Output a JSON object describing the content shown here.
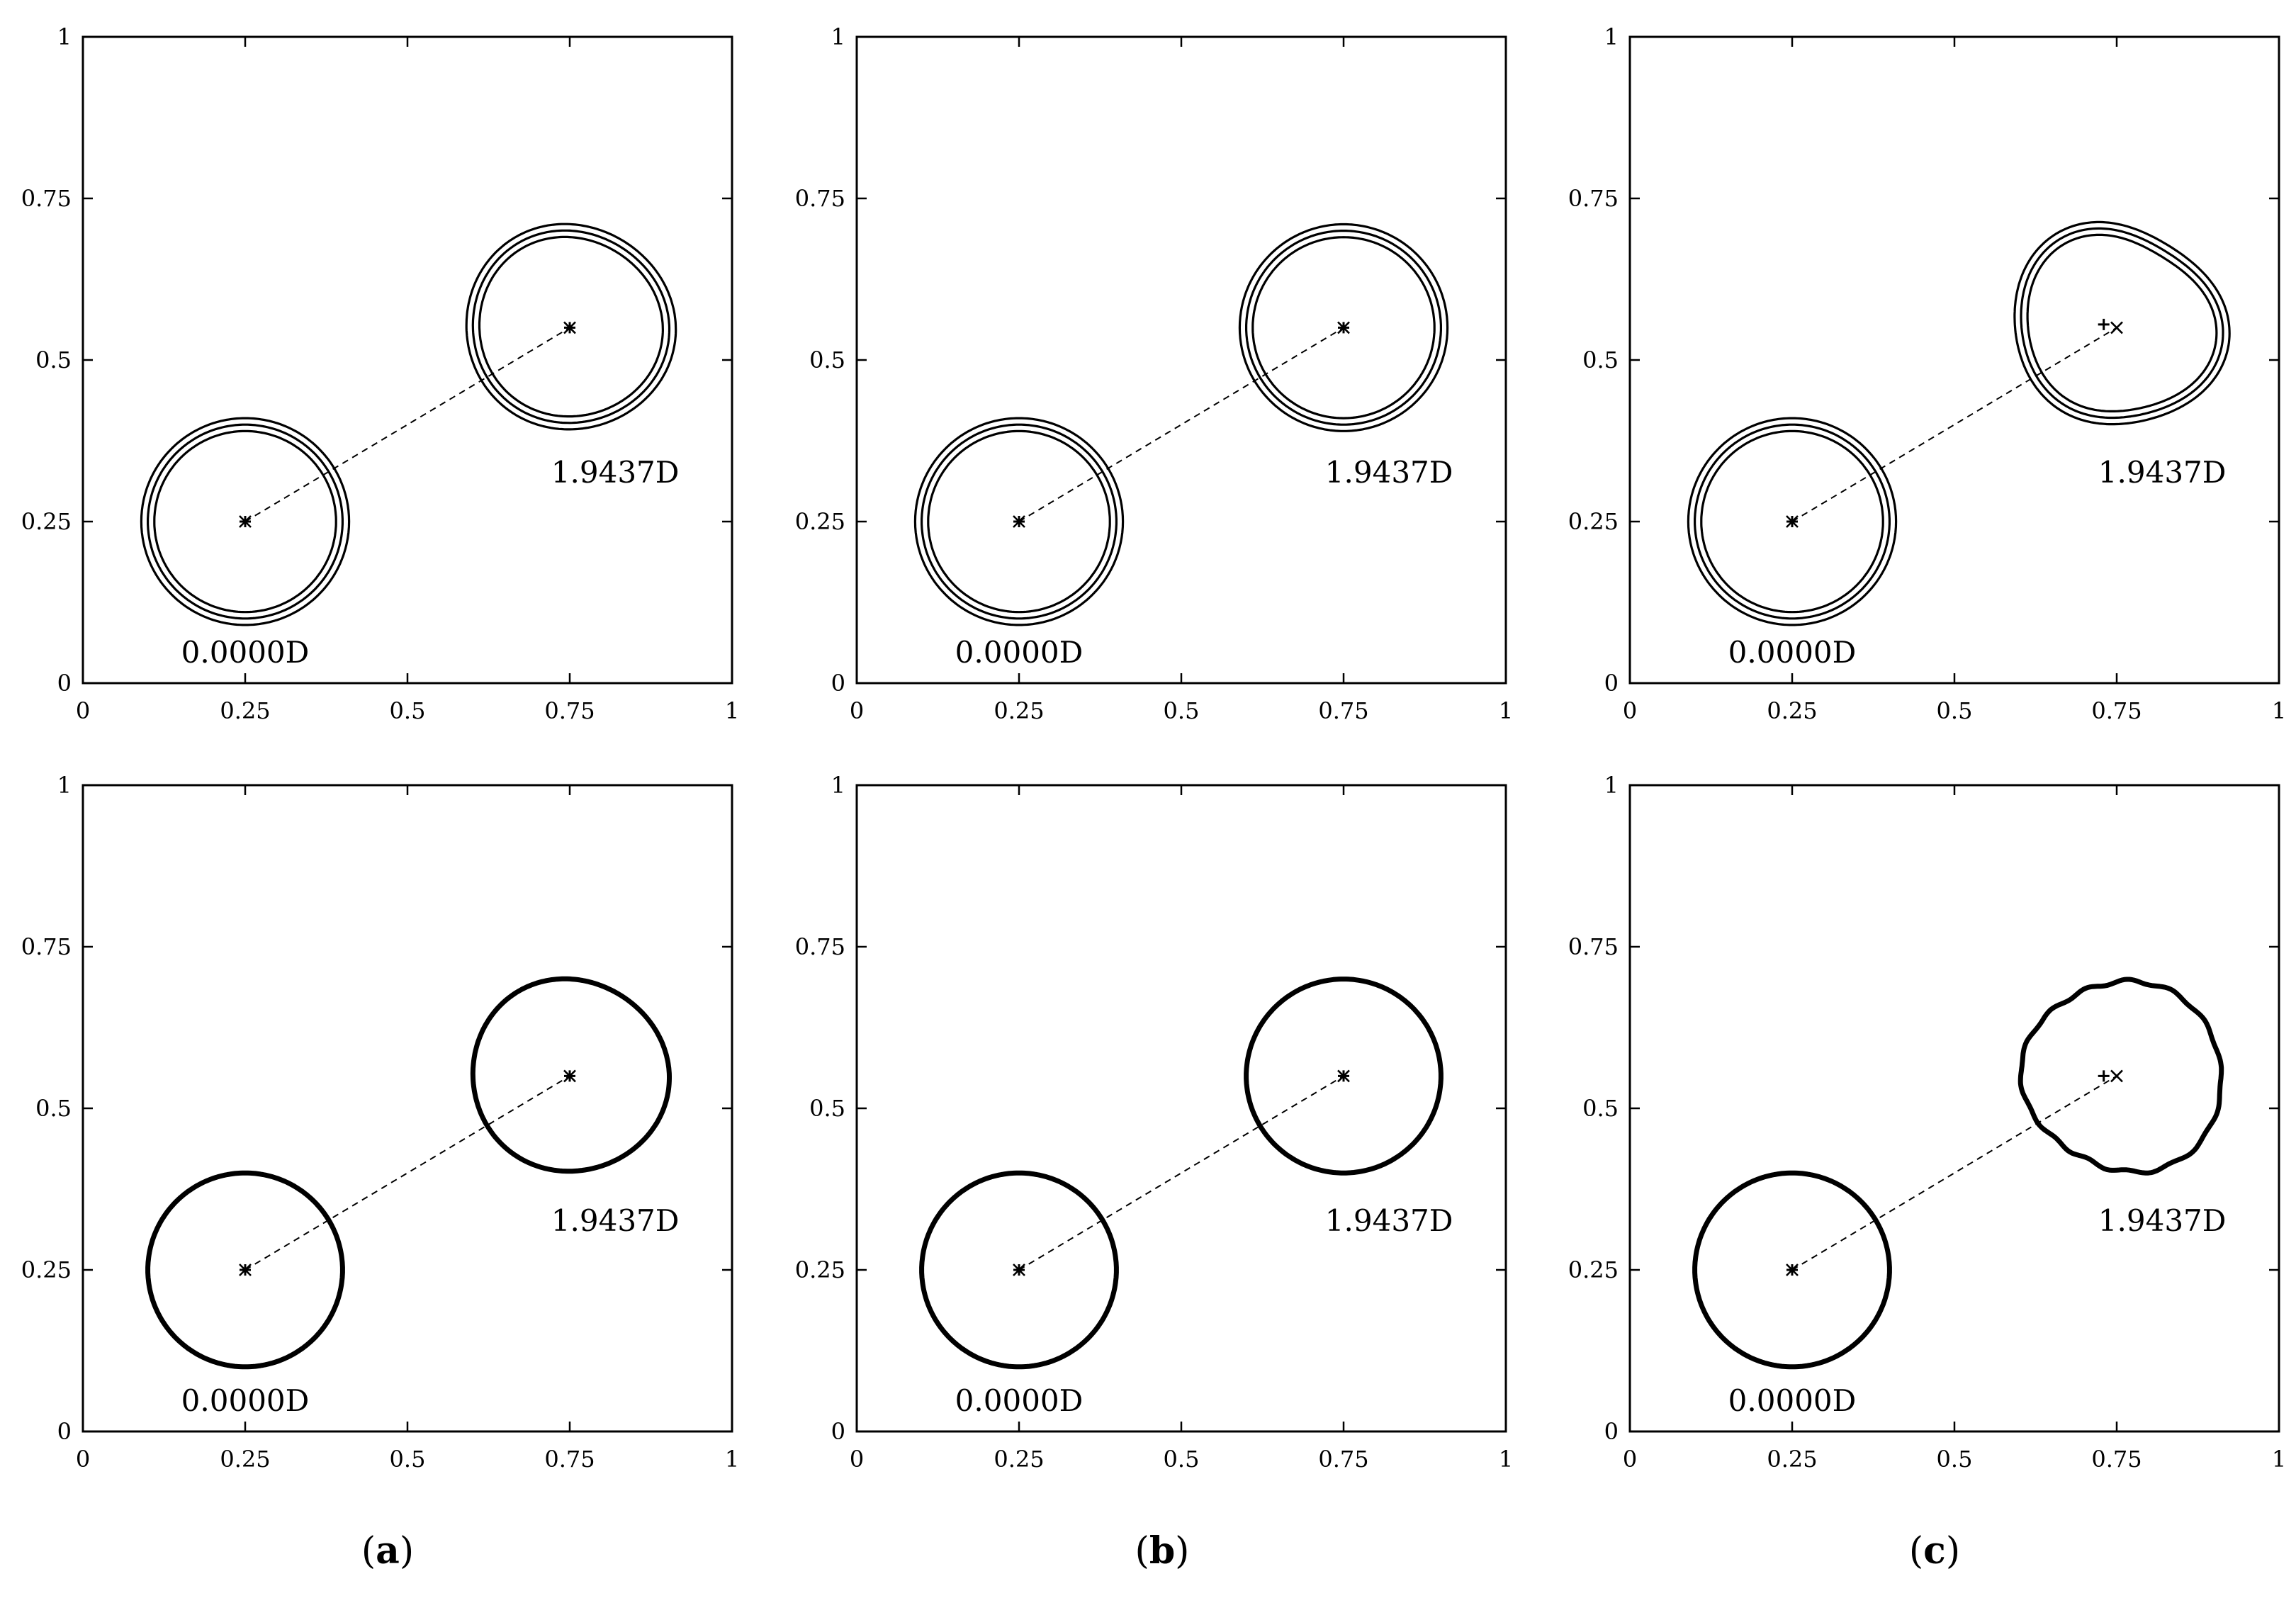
{
  "chart_data": [
    {
      "type": "line",
      "panel": "a",
      "row": "top",
      "style": "contour_triple",
      "xlim": [
        0,
        1
      ],
      "ylim": [
        0,
        1
      ],
      "xticks": [
        "0",
        "0.25",
        "0.5",
        "0.75",
        "1"
      ],
      "yticks": [
        "0",
        "0.25",
        "0.5",
        "0.75",
        "1"
      ],
      "start": {
        "x": 0.25,
        "y": 0.25,
        "label": "0.0000D",
        "radius": 0.15
      },
      "end": {
        "x": 0.75,
        "y": 0.55,
        "label": "1.9437D",
        "radius": 0.15,
        "deformation": 0.25
      },
      "computed_center": null
    },
    {
      "type": "line",
      "panel": "b",
      "row": "top",
      "style": "contour_triple",
      "xlim": [
        0,
        1
      ],
      "ylim": [
        0,
        1
      ],
      "xticks": [
        "0",
        "0.25",
        "0.5",
        "0.75",
        "1"
      ],
      "yticks": [
        "0",
        "0.25",
        "0.5",
        "0.75",
        "1"
      ],
      "start": {
        "x": 0.25,
        "y": 0.25,
        "label": "0.0000D",
        "radius": 0.15
      },
      "end": {
        "x": 0.75,
        "y": 0.55,
        "label": "1.9437D",
        "radius": 0.15,
        "deformation": 0
      },
      "computed_center": null
    },
    {
      "type": "line",
      "panel": "c",
      "row": "top",
      "style": "contour_triple",
      "xlim": [
        0,
        1
      ],
      "ylim": [
        0,
        1
      ],
      "xticks": [
        "0",
        "0.25",
        "0.5",
        "0.75",
        "1"
      ],
      "yticks": [
        "0",
        "0.25",
        "0.5",
        "0.75",
        "1"
      ],
      "start": {
        "x": 0.25,
        "y": 0.25,
        "label": "0.0000D",
        "radius": 0.15
      },
      "end": {
        "x": 0.75,
        "y": 0.55,
        "label": "1.9437D",
        "radius": 0.15,
        "deformation": 1
      },
      "computed_center": {
        "x": 0.73,
        "y": 0.555
      }
    },
    {
      "type": "line",
      "panel": "a",
      "row": "bottom",
      "style": "single_thick",
      "xlim": [
        0,
        1
      ],
      "ylim": [
        0,
        1
      ],
      "xticks": [
        "0",
        "0.25",
        "0.5",
        "0.75",
        "1"
      ],
      "yticks": [
        "0",
        "0.25",
        "0.5",
        "0.75",
        "1"
      ],
      "start": {
        "x": 0.25,
        "y": 0.25,
        "label": "0.0000D",
        "radius": 0.15
      },
      "end": {
        "x": 0.75,
        "y": 0.55,
        "label": "1.9437D",
        "radius": 0.15,
        "deformation": 0.25
      },
      "computed_center": null
    },
    {
      "type": "line",
      "panel": "b",
      "row": "bottom",
      "style": "single_thick",
      "xlim": [
        0,
        1
      ],
      "ylim": [
        0,
        1
      ],
      "xticks": [
        "0",
        "0.25",
        "0.5",
        "0.75",
        "1"
      ],
      "yticks": [
        "0",
        "0.25",
        "0.5",
        "0.75",
        "1"
      ],
      "start": {
        "x": 0.25,
        "y": 0.25,
        "label": "0.0000D",
        "radius": 0.15
      },
      "end": {
        "x": 0.75,
        "y": 0.55,
        "label": "1.9437D",
        "radius": 0.15,
        "deformation": 0
      },
      "computed_center": null
    },
    {
      "type": "line",
      "panel": "c",
      "row": "bottom",
      "style": "single_thick",
      "xlim": [
        0,
        1
      ],
      "ylim": [
        0,
        1
      ],
      "xticks": [
        "0",
        "0.25",
        "0.5",
        "0.75",
        "1"
      ],
      "yticks": [
        "0",
        "0.25",
        "0.5",
        "0.75",
        "1"
      ],
      "start": {
        "x": 0.25,
        "y": 0.25,
        "label": "0.0000D",
        "radius": 0.15
      },
      "end": {
        "x": 0.75,
        "y": 0.55,
        "label": "1.9437D",
        "radius": 0.15,
        "deformation": 1.6
      },
      "computed_center": {
        "x": 0.73,
        "y": 0.55
      }
    }
  ],
  "captions": {
    "a": "a",
    "b": "b",
    "c": "c"
  },
  "colors": {
    "line": "#000000",
    "background": "#ffffff"
  }
}
